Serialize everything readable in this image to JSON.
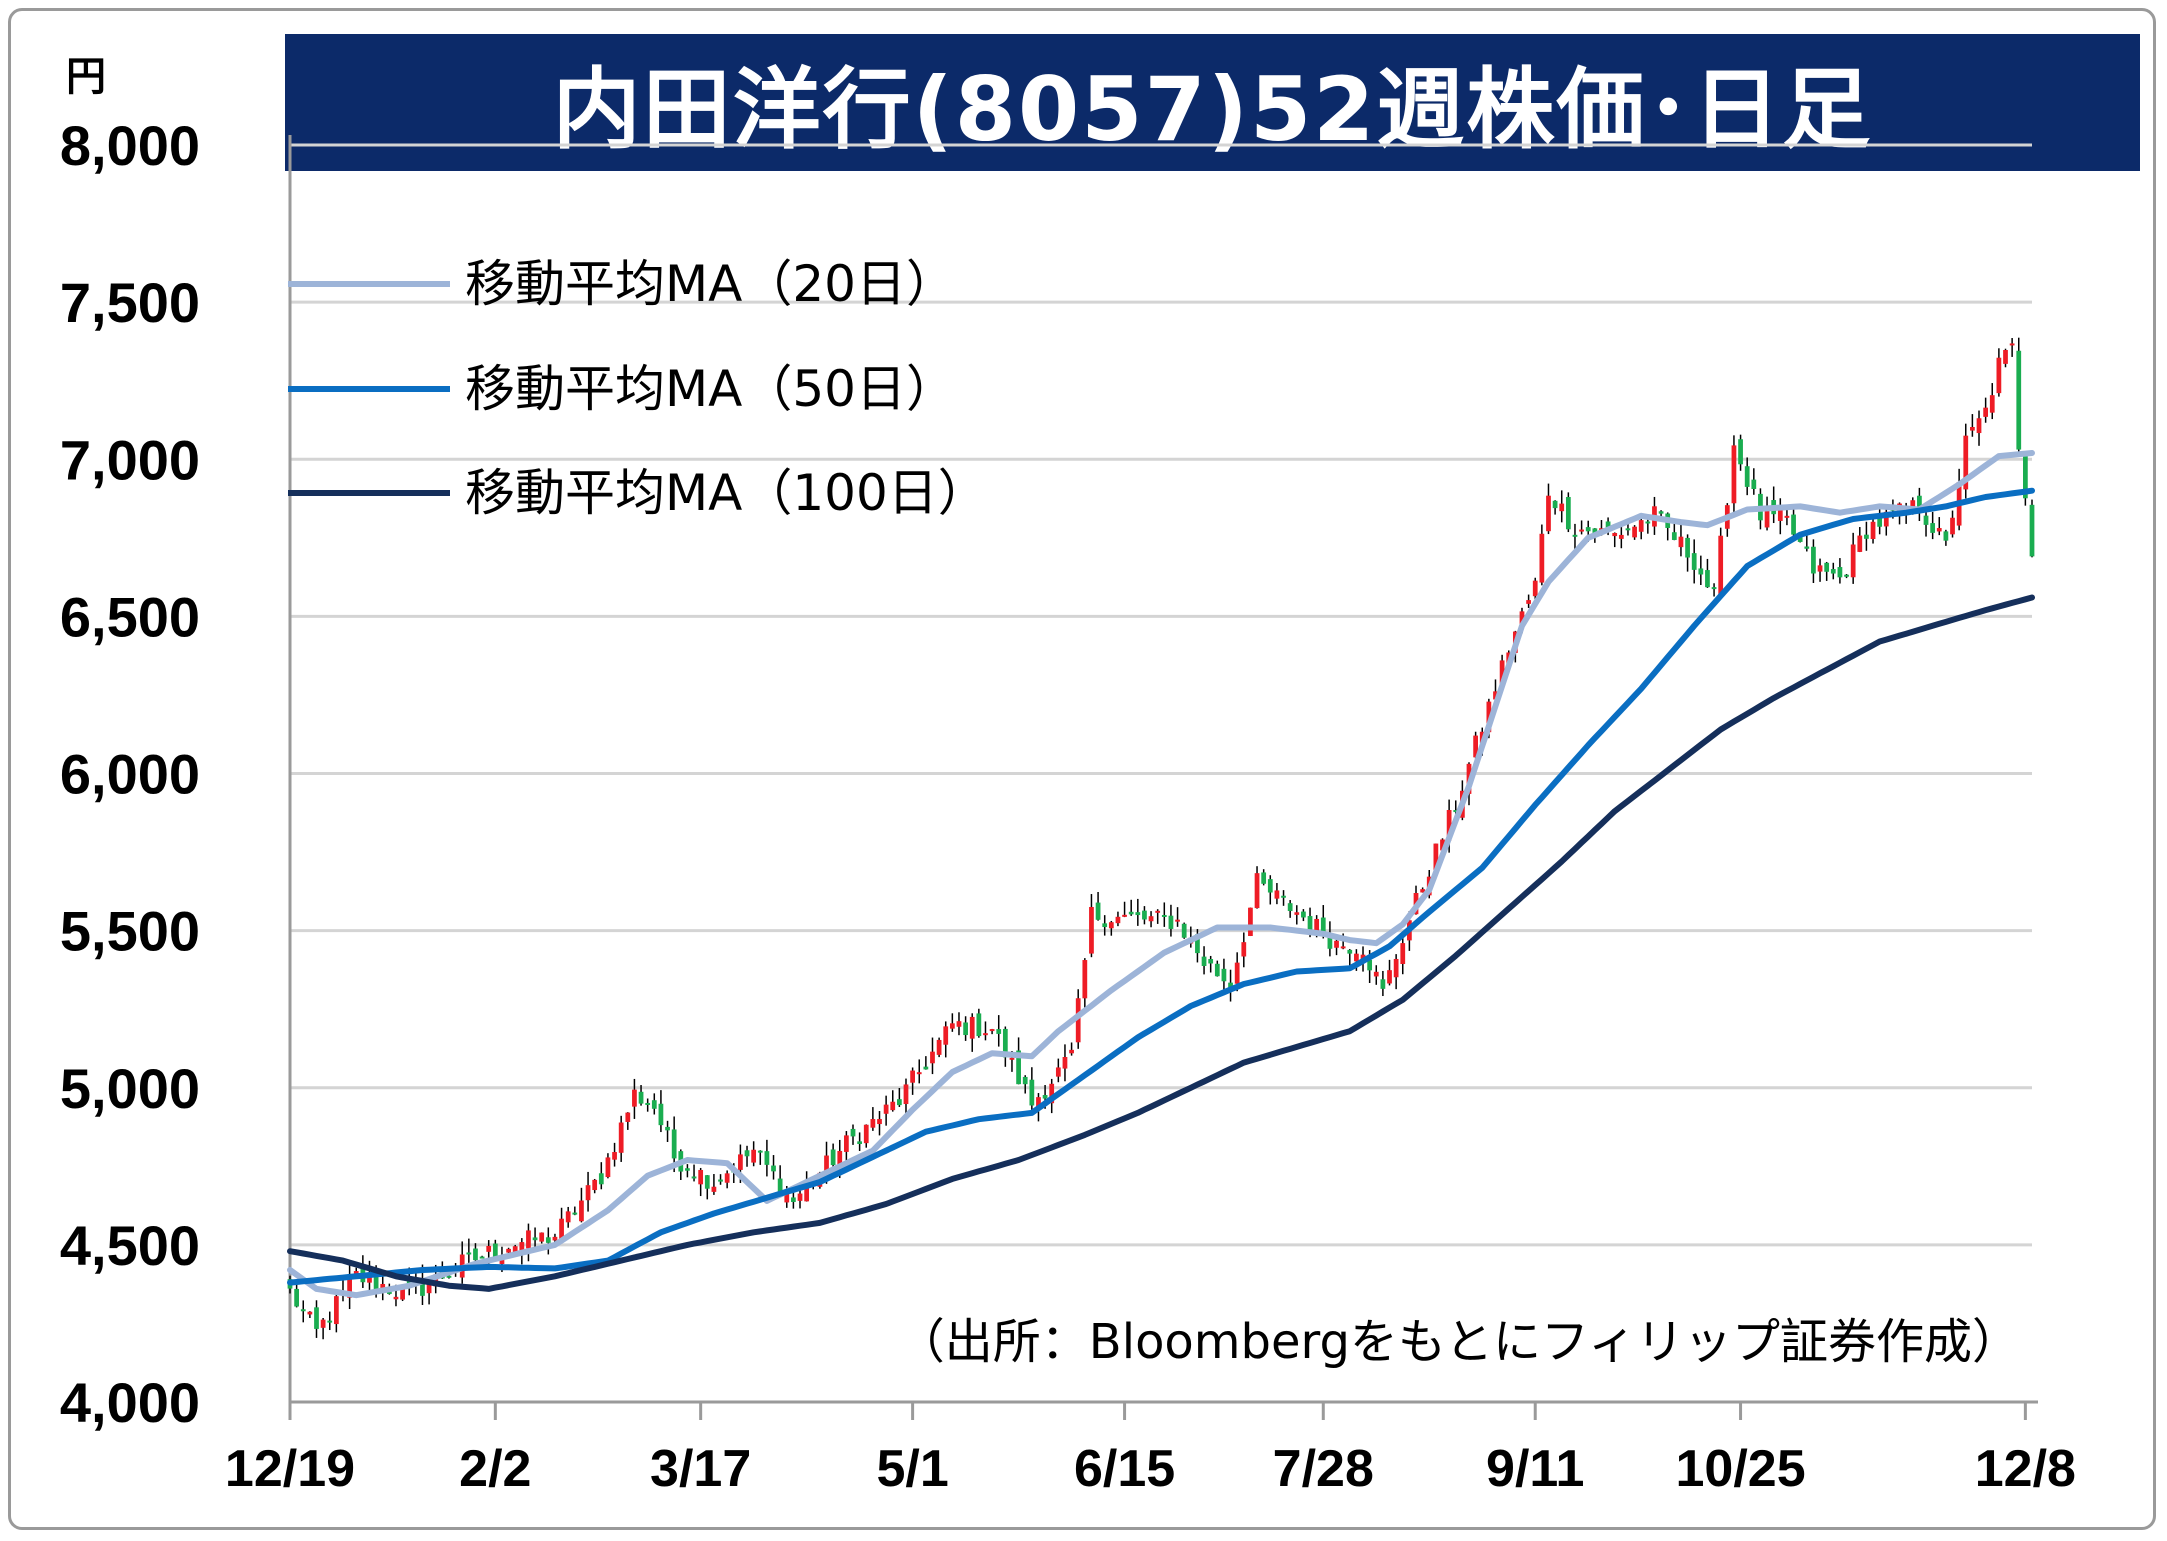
{
  "title": "内田洋行(8057)52週株価･日足",
  "unit_label": "円",
  "source": "（出所：Bloombergをもとにフィリップ証券作成）",
  "legend": [
    {
      "label": "移動平均MA（20日）",
      "color": "#9db4d8"
    },
    {
      "label": "移動平均MA（50日）",
      "color": "#0a6ec2"
    },
    {
      "label": "移動平均MA（100日）",
      "color": "#152f5b"
    }
  ],
  "colors": {
    "up": "#ee1c25",
    "down": "#1aad50",
    "wick": "#000000",
    "title_bg": "#0c2a69",
    "grid": "#d4d4d4"
  },
  "chart_data": {
    "type": "line",
    "title": "内田洋行(8057)52週株価･日足",
    "ylim": [
      4000,
      8000
    ],
    "yticks": [
      "4,000",
      "4,500",
      "5,000",
      "5,500",
      "6,000",
      "6,500",
      "7,000",
      "7,500",
      "8,000"
    ],
    "xticks": [
      "12/19",
      "2/2",
      "3/17",
      "5/1",
      "6/15",
      "7/28",
      "9/11",
      "10/25",
      "12/8"
    ],
    "grid": true,
    "legend_position": "top-left",
    "close_anchors": [
      [
        0,
        4350
      ],
      [
        4,
        4220
      ],
      [
        10,
        4400
      ],
      [
        18,
        4340
      ],
      [
        26,
        4440
      ],
      [
        33,
        4500
      ],
      [
        40,
        4530
      ],
      [
        47,
        4720
      ],
      [
        52,
        4980
      ],
      [
        55,
        4940
      ],
      [
        58,
        4780
      ],
      [
        64,
        4700
      ],
      [
        70,
        4800
      ],
      [
        76,
        4640
      ],
      [
        84,
        4820
      ],
      [
        92,
        4960
      ],
      [
        100,
        5200
      ],
      [
        106,
        5190
      ],
      [
        112,
        4950
      ],
      [
        118,
        5100
      ],
      [
        121,
        5550
      ],
      [
        126,
        5540
      ],
      [
        134,
        5530
      ],
      [
        138,
        5400
      ],
      [
        142,
        5330
      ],
      [
        146,
        5650
      ],
      [
        152,
        5560
      ],
      [
        158,
        5460
      ],
      [
        162,
        5450
      ],
      [
        165,
        5300
      ],
      [
        168,
        5480
      ],
      [
        172,
        5700
      ],
      [
        176,
        5900
      ],
      [
        180,
        6150
      ],
      [
        184,
        6400
      ],
      [
        188,
        6600
      ],
      [
        190,
        6900
      ],
      [
        194,
        6780
      ],
      [
        200,
        6760
      ],
      [
        206,
        6820
      ],
      [
        212,
        6680
      ],
      [
        215,
        6560
      ],
      [
        218,
        7050
      ],
      [
        222,
        6820
      ],
      [
        226,
        6800
      ],
      [
        230,
        6650
      ],
      [
        234,
        6620
      ],
      [
        238,
        6780
      ],
      [
        242,
        6820
      ],
      [
        246,
        6850
      ],
      [
        250,
        6720
      ],
      [
        253,
        7050
      ],
      [
        256,
        7150
      ],
      [
        258,
        7300
      ],
      [
        260,
        7350
      ],
      [
        261,
        7050
      ],
      [
        262,
        6900
      ],
      [
        263,
        6720
      ]
    ],
    "series": [
      {
        "name": "移動平均MA（20日）",
        "anchors": [
          [
            0,
            4420
          ],
          [
            4,
            4360
          ],
          [
            10,
            4340
          ],
          [
            18,
            4370
          ],
          [
            28,
            4440
          ],
          [
            40,
            4500
          ],
          [
            48,
            4610
          ],
          [
            54,
            4720
          ],
          [
            60,
            4770
          ],
          [
            66,
            4760
          ],
          [
            72,
            4640
          ],
          [
            80,
            4720
          ],
          [
            88,
            4800
          ],
          [
            94,
            4930
          ],
          [
            100,
            5050
          ],
          [
            106,
            5110
          ],
          [
            112,
            5100
          ],
          [
            116,
            5180
          ],
          [
            124,
            5310
          ],
          [
            132,
            5430
          ],
          [
            140,
            5510
          ],
          [
            148,
            5510
          ],
          [
            156,
            5490
          ],
          [
            160,
            5470
          ],
          [
            164,
            5460
          ],
          [
            168,
            5520
          ],
          [
            172,
            5630
          ],
          [
            178,
            5960
          ],
          [
            186,
            6470
          ],
          [
            190,
            6610
          ],
          [
            196,
            6750
          ],
          [
            204,
            6820
          ],
          [
            210,
            6800
          ],
          [
            214,
            6790
          ],
          [
            220,
            6840
          ],
          [
            228,
            6850
          ],
          [
            234,
            6830
          ],
          [
            240,
            6850
          ],
          [
            246,
            6840
          ],
          [
            252,
            6920
          ],
          [
            258,
            7010
          ],
          [
            263,
            7020
          ]
        ]
      },
      {
        "name": "移動平均MA（50日）",
        "anchors": [
          [
            0,
            4380
          ],
          [
            10,
            4400
          ],
          [
            20,
            4420
          ],
          [
            30,
            4430
          ],
          [
            40,
            4425
          ],
          [
            48,
            4450
          ],
          [
            56,
            4540
          ],
          [
            64,
            4600
          ],
          [
            72,
            4650
          ],
          [
            80,
            4700
          ],
          [
            88,
            4780
          ],
          [
            96,
            4860
          ],
          [
            104,
            4900
          ],
          [
            112,
            4920
          ],
          [
            120,
            5040
          ],
          [
            128,
            5160
          ],
          [
            136,
            5260
          ],
          [
            144,
            5330
          ],
          [
            152,
            5370
          ],
          [
            160,
            5380
          ],
          [
            166,
            5450
          ],
          [
            172,
            5560
          ],
          [
            180,
            5700
          ],
          [
            188,
            5900
          ],
          [
            196,
            6090
          ],
          [
            204,
            6270
          ],
          [
            212,
            6470
          ],
          [
            220,
            6660
          ],
          [
            228,
            6760
          ],
          [
            236,
            6810
          ],
          [
            244,
            6830
          ],
          [
            250,
            6850
          ],
          [
            256,
            6880
          ],
          [
            263,
            6900
          ]
        ]
      },
      {
        "name": "移動平均MA（100日）",
        "anchors": [
          [
            0,
            4480
          ],
          [
            8,
            4450
          ],
          [
            16,
            4400
          ],
          [
            24,
            4370
          ],
          [
            30,
            4360
          ],
          [
            40,
            4400
          ],
          [
            50,
            4450
          ],
          [
            60,
            4500
          ],
          [
            70,
            4540
          ],
          [
            80,
            4570
          ],
          [
            90,
            4630
          ],
          [
            100,
            4710
          ],
          [
            110,
            4770
          ],
          [
            120,
            4850
          ],
          [
            128,
            4920
          ],
          [
            136,
            5000
          ],
          [
            144,
            5080
          ],
          [
            152,
            5130
          ],
          [
            160,
            5180
          ],
          [
            168,
            5280
          ],
          [
            176,
            5420
          ],
          [
            184,
            5570
          ],
          [
            192,
            5720
          ],
          [
            200,
            5880
          ],
          [
            208,
            6010
          ],
          [
            216,
            6140
          ],
          [
            224,
            6240
          ],
          [
            232,
            6330
          ],
          [
            240,
            6420
          ],
          [
            248,
            6470
          ],
          [
            256,
            6520
          ],
          [
            263,
            6560
          ]
        ]
      }
    ]
  }
}
